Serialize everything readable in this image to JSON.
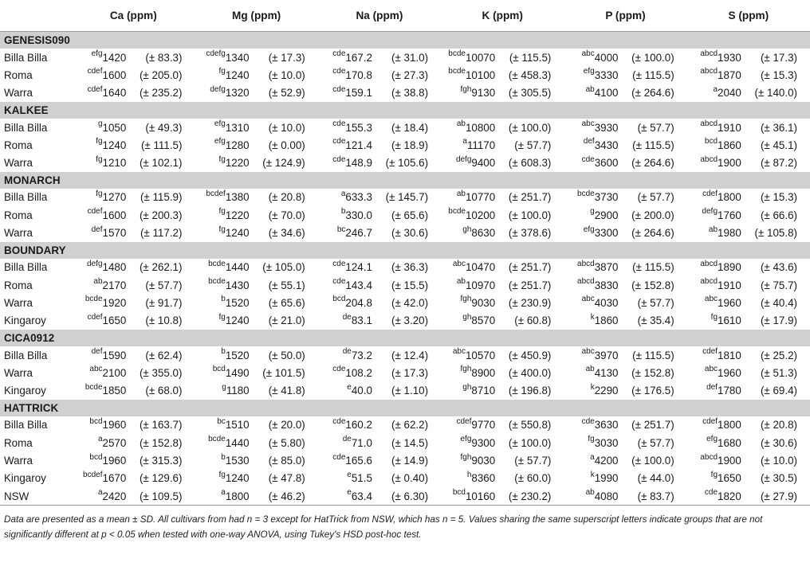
{
  "columns": [
    "Ca (ppm)",
    "Mg (ppm)",
    "Na (ppm)",
    "K (ppm)",
    "P (ppm)",
    "S (ppm)"
  ],
  "groups": [
    {
      "name": "GENESIS090",
      "rows": [
        {
          "site": "Billa Billa",
          "cells": [
            [
              "efg",
              "1420",
              "(± 83.3)"
            ],
            [
              "cdefg",
              "1340",
              "(± 17.3)"
            ],
            [
              "cde",
              "167.2",
              "(± 31.0)"
            ],
            [
              "bcde",
              "10070",
              "(± 115.5)"
            ],
            [
              "abc",
              "4000",
              "(± 100.0)"
            ],
            [
              "abcd",
              "1930",
              "(± 17.3)"
            ]
          ]
        },
        {
          "site": "Roma",
          "cells": [
            [
              "cdef",
              "1600",
              "(± 205.0)"
            ],
            [
              "fg",
              "1240",
              "(± 10.0)"
            ],
            [
              "cde",
              "170.8",
              "(± 27.3)"
            ],
            [
              "bcde",
              "10100",
              "(± 458.3)"
            ],
            [
              "efg",
              "3330",
              "(± 115.5)"
            ],
            [
              "abcd",
              "1870",
              "(± 15.3)"
            ]
          ]
        },
        {
          "site": "Warra",
          "cells": [
            [
              "cdef",
              "1640",
              "(± 235.2)"
            ],
            [
              "defg",
              "1320",
              "(± 52.9)"
            ],
            [
              "cde",
              "159.1",
              "(± 38.8)"
            ],
            [
              "fgh",
              "9130",
              "(± 305.5)"
            ],
            [
              "ab",
              "4100",
              "(± 264.6)"
            ],
            [
              "a",
              "2040",
              "(± 140.0)"
            ]
          ]
        }
      ]
    },
    {
      "name": "KALKEE",
      "rows": [
        {
          "site": "Billa Billa",
          "cells": [
            [
              "g",
              "1050",
              "(± 49.3)"
            ],
            [
              "efg",
              "1310",
              "(± 10.0)"
            ],
            [
              "cde",
              "155.3",
              "(± 18.4)"
            ],
            [
              "ab",
              "10800",
              "(± 100.0)"
            ],
            [
              "abc",
              "3930",
              "(± 57.7)"
            ],
            [
              "abcd",
              "1910",
              "(± 36.1)"
            ]
          ]
        },
        {
          "site": "Roma",
          "cells": [
            [
              "fg",
              "1240",
              "(± 111.5)"
            ],
            [
              "efg",
              "1280",
              "(± 0.00)"
            ],
            [
              "cde",
              "121.4",
              "(± 18.9)"
            ],
            [
              "a",
              "11170",
              "(± 57.7)"
            ],
            [
              "def",
              "3430",
              "(± 115.5)"
            ],
            [
              "bcd",
              "1860",
              "(± 45.1)"
            ]
          ]
        },
        {
          "site": "Warra",
          "cells": [
            [
              "fg",
              "1210",
              "(± 102.1)"
            ],
            [
              "fg",
              "1220",
              "(± 124.9)"
            ],
            [
              "cde",
              "148.9",
              "(± 105.6)"
            ],
            [
              "defg",
              "9400",
              "(± 608.3)"
            ],
            [
              "cde",
              "3600",
              "(± 264.6)"
            ],
            [
              "abcd",
              "1900",
              "(± 87.2)"
            ]
          ]
        }
      ]
    },
    {
      "name": "MONARCH",
      "rows": [
        {
          "site": "Billa Billa",
          "cells": [
            [
              "fg",
              "1270",
              "(± 115.9)"
            ],
            [
              "bcdef",
              "1380",
              "(± 20.8)"
            ],
            [
              "a",
              "633.3",
              "(± 145.7)"
            ],
            [
              "ab",
              "10770",
              "(± 251.7)"
            ],
            [
              "bcde",
              "3730",
              "(± 57.7)"
            ],
            [
              "cdef",
              "1800",
              "(± 15.3)"
            ]
          ]
        },
        {
          "site": "Roma",
          "cells": [
            [
              "cdef",
              "1600",
              "(± 200.3)"
            ],
            [
              "fg",
              "1220",
              "(± 70.0)"
            ],
            [
              "b",
              "330.0",
              "(± 65.6)"
            ],
            [
              "bcde",
              "10200",
              "(± 100.0)"
            ],
            [
              "g",
              "2900",
              "(± 200.0)"
            ],
            [
              "defg",
              "1760",
              "(± 66.6)"
            ]
          ]
        },
        {
          "site": "Warra",
          "cells": [
            [
              "def",
              "1570",
              "(± 117.2)"
            ],
            [
              "fg",
              "1240",
              "(± 34.6)"
            ],
            [
              "bc",
              "246.7",
              "(± 30.6)"
            ],
            [
              "gh",
              "8630",
              "(± 378.6)"
            ],
            [
              "efg",
              "3300",
              "(± 264.6)"
            ],
            [
              "ab",
              "1980",
              "(± 105.8)"
            ]
          ]
        }
      ]
    },
    {
      "name": "BOUNDARY",
      "rows": [
        {
          "site": "Billa Billa",
          "cells": [
            [
              "defg",
              "1480",
              "(± 262.1)"
            ],
            [
              "bcde",
              "1440",
              "(± 105.0)"
            ],
            [
              "cde",
              "124.1",
              "(± 36.3)"
            ],
            [
              "abc",
              "10470",
              "(± 251.7)"
            ],
            [
              "abcd",
              "3870",
              "(± 115.5)"
            ],
            [
              "abcd",
              "1890",
              "(± 43.6)"
            ]
          ]
        },
        {
          "site": "Roma",
          "cells": [
            [
              "ab",
              "2170",
              "(± 57.7)"
            ],
            [
              "bcde",
              "1430",
              "(± 55.1)"
            ],
            [
              "cde",
              "143.4",
              "(± 15.5)"
            ],
            [
              "ab",
              "10970",
              "(± 251.7)"
            ],
            [
              "abcd",
              "3830",
              "(± 152.8)"
            ],
            [
              "abcd",
              "1910",
              "(± 75.7)"
            ]
          ]
        },
        {
          "site": "Warra",
          "cells": [
            [
              "bcde",
              "1920",
              "(± 91.7)"
            ],
            [
              "b",
              "1520",
              "(± 65.6)"
            ],
            [
              "bcd",
              "204.8",
              "(± 42.0)"
            ],
            [
              "fgh",
              "9030",
              "(± 230.9)"
            ],
            [
              "abc",
              "4030",
              "(± 57.7)"
            ],
            [
              "abc",
              "1960",
              "(± 40.4)"
            ]
          ]
        },
        {
          "site": "Kingaroy",
          "cells": [
            [
              "cdef",
              "1650",
              "(± 10.8)"
            ],
            [
              "fg",
              "1240",
              "(± 21.0)"
            ],
            [
              "de",
              "83.1",
              "(± 3.20)"
            ],
            [
              "gh",
              "8570",
              "(± 60.8)"
            ],
            [
              "k",
              "1860",
              "(± 35.4)"
            ],
            [
              "fg",
              "1610",
              "(± 17.9)"
            ]
          ]
        }
      ]
    },
    {
      "name": "CICA0912",
      "rows": [
        {
          "site": "Billa Billa",
          "cells": [
            [
              "def",
              "1590",
              "(± 62.4)"
            ],
            [
              "b",
              "1520",
              "(± 50.0)"
            ],
            [
              "de",
              "73.2",
              "(± 12.4)"
            ],
            [
              "abc",
              "10570",
              "(± 450.9)"
            ],
            [
              "abc",
              "3970",
              "(± 115.5)"
            ],
            [
              "cdef",
              "1810",
              "(± 25.2)"
            ]
          ]
        },
        {
          "site": "Warra",
          "cells": [
            [
              "abc",
              "2100",
              "(± 355.0)"
            ],
            [
              "bcd",
              "1490",
              "(± 101.5)"
            ],
            [
              "cde",
              "108.2",
              "(± 17.3)"
            ],
            [
              "fgh",
              "8900",
              "(± 400.0)"
            ],
            [
              "ab",
              "4130",
              "(± 152.8)"
            ],
            [
              "abc",
              "1960",
              "(± 51.3)"
            ]
          ]
        },
        {
          "site": "Kingaroy",
          "cells": [
            [
              "bcde",
              "1850",
              "(± 68.0)"
            ],
            [
              "g",
              "1180",
              "(± 41.8)"
            ],
            [
              "e",
              "40.0",
              "(± 1.10)"
            ],
            [
              "gh",
              "8710",
              "(± 196.8)"
            ],
            [
              "k",
              "2290",
              "(± 176.5)"
            ],
            [
              "def",
              "1780",
              "(± 69.4)"
            ]
          ]
        }
      ]
    },
    {
      "name": "HATTRICK",
      "rows": [
        {
          "site": "Billa Billa",
          "cells": [
            [
              "bcd",
              "1960",
              "(± 163.7)"
            ],
            [
              "bc",
              "1510",
              "(± 20.0)"
            ],
            [
              "cde",
              "160.2",
              "(± 62.2)"
            ],
            [
              "cdef",
              "9770",
              "(± 550.8)"
            ],
            [
              "cde",
              "3630",
              "(± 251.7)"
            ],
            [
              "cdef",
              "1800",
              "(± 20.8)"
            ]
          ]
        },
        {
          "site": "Roma",
          "cells": [
            [
              "a",
              "2570",
              "(± 152.8)"
            ],
            [
              "bcde",
              "1440",
              "(± 5.80)"
            ],
            [
              "de",
              "71.0",
              "(± 14.5)"
            ],
            [
              "efg",
              "9300",
              "(± 100.0)"
            ],
            [
              "fg",
              "3030",
              "(± 57.7)"
            ],
            [
              "efg",
              "1680",
              "(± 30.6)"
            ]
          ]
        },
        {
          "site": "Warra",
          "cells": [
            [
              "bcd",
              "1960",
              "(± 315.3)"
            ],
            [
              "b",
              "1530",
              "(± 85.0)"
            ],
            [
              "cde",
              "165.6",
              "(± 14.9)"
            ],
            [
              "fgh",
              "9030",
              "(± 57.7)"
            ],
            [
              "a",
              "4200",
              "(± 100.0)"
            ],
            [
              "abcd",
              "1900",
              "(± 10.0)"
            ]
          ]
        },
        {
          "site": "Kingaroy",
          "cells": [
            [
              "bcdef",
              "1670",
              "(± 129.6)"
            ],
            [
              "fg",
              "1240",
              "(± 47.8)"
            ],
            [
              "e",
              "51.5",
              "(± 0.40)"
            ],
            [
              "h",
              "8360",
              "(± 60.0)"
            ],
            [
              "k",
              "1990",
              "(± 44.0)"
            ],
            [
              "fg",
              "1650",
              "(± 30.5)"
            ]
          ]
        },
        {
          "site": "NSW",
          "cells": [
            [
              "a",
              "2420",
              "(± 109.5)"
            ],
            [
              "a",
              "1800",
              "(± 46.2)"
            ],
            [
              "e",
              "63.4",
              "(± 6.30)"
            ],
            [
              "bcd",
              "10160",
              "(± 230.2)"
            ],
            [
              "ab",
              "4080",
              "(± 83.7)"
            ],
            [
              "cde",
              "1820",
              "(± 27.9)"
            ]
          ]
        }
      ]
    }
  ],
  "footnote": "Data are presented as a mean ± SD. All cultivars from had n = 3 except for HatTrick from NSW, which has n = 5. Values sharing the same superscript letters indicate groups that are not significantly different at p < 0.05 when tested with one-way ANOVA, using Tukey's HSD post-hoc test."
}
